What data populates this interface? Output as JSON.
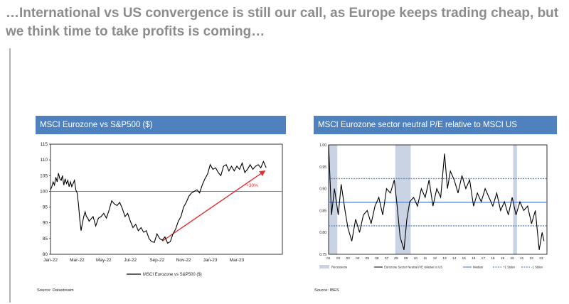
{
  "headline": "…International vs US convergence is still our call, as Europe keeps trading cheap, but we think time to take profits is coming…",
  "colors": {
    "panel_header": "#4e81bd",
    "series": "#000000",
    "trend_arrow": "#e03030",
    "recession_band": "#c9d3e3",
    "median_line": "#5b86c4",
    "headline": "#8c8c8c"
  },
  "chart_data": [
    {
      "type": "line",
      "panel_title": "MSCI Eurozone vs S&P500 ($)",
      "source": "Source: Datastream",
      "x_tick_labels": [
        "Jan-22",
        "Mar-22",
        "May-22",
        "Jul-22",
        "Sep-22",
        "Nov-22",
        "Jan-23",
        "Mar-23"
      ],
      "y_tick_labels": [
        "80",
        "85",
        "90",
        "95",
        "100",
        "105",
        "110",
        "115"
      ],
      "ylim": [
        80,
        115
      ],
      "reference_line": 100,
      "annotation": "+30%",
      "series": [
        {
          "name": "MSCI Eurozone vs S&P500 ($)",
          "x": [
            0.0,
            0.1,
            0.2,
            0.3,
            0.4,
            0.5,
            0.6,
            0.7,
            0.8,
            0.9,
            1.0,
            1.1,
            1.2,
            1.3,
            1.4,
            1.5,
            1.6,
            1.7,
            1.8,
            1.9,
            2.0,
            2.1,
            2.2,
            2.3,
            2.4,
            2.5,
            2.6,
            2.7,
            2.8,
            2.9,
            3.0,
            3.2,
            3.4,
            3.6,
            3.8,
            4.0,
            4.2,
            4.4,
            4.6,
            4.8,
            5.0,
            5.2,
            5.4,
            5.6,
            5.8,
            6.0,
            6.2,
            6.4,
            6.6,
            6.8,
            7.0,
            7.2,
            7.4,
            7.6,
            7.8,
            8.0,
            8.2,
            8.4,
            8.6,
            8.8,
            9.0,
            9.2,
            9.4,
            9.6,
            9.8,
            10.0,
            10.2,
            10.4,
            10.6,
            10.8,
            11.0,
            11.2,
            11.4,
            11.6,
            11.8,
            12.0,
            12.2,
            12.4,
            12.6,
            12.8,
            13.0,
            13.2,
            13.4,
            13.6,
            13.8,
            14.0,
            14.2,
            14.4,
            14.6,
            14.8,
            15.0,
            15.2,
            15.4,
            15.6,
            15.8,
            16.0,
            16.2
          ],
          "values": [
            100.5,
            101.5,
            103,
            102,
            104.5,
            103,
            105.8,
            104,
            103.5,
            105,
            102,
            104,
            102.5,
            103.5,
            101.5,
            103,
            101.5,
            102.5,
            103.5,
            100.5,
            99.5,
            96,
            91,
            87.5,
            90,
            92,
            93.5,
            92,
            91.5,
            90.5,
            91,
            92,
            89,
            91.5,
            92,
            93,
            91.5,
            94,
            97,
            96,
            95.5,
            96.5,
            94.5,
            92,
            93,
            90.5,
            88.5,
            89.5,
            87.5,
            88.5,
            87,
            87.5,
            85,
            84,
            83.8,
            86.5,
            85,
            84.5,
            85.5,
            83.5,
            84,
            86.5,
            88,
            90.5,
            92,
            95,
            96.5,
            98.5,
            99.5,
            100,
            100.5,
            99.5,
            102,
            104,
            105.5,
            108.5,
            107,
            107.5,
            106,
            105,
            108,
            108.5,
            106.5,
            108,
            106.5,
            108,
            107,
            109,
            106,
            107,
            108.5,
            107,
            108,
            108.5,
            107.5,
            109.5,
            107.5
          ]
        }
      ]
    },
    {
      "type": "line",
      "panel_title": "MSCI Eurozone sector neutral P/E relative to MSCI US",
      "source": "Source: IBES",
      "x_tick_labels": [
        "01",
        "02",
        "03",
        "04",
        "05",
        "06",
        "07",
        "08",
        "09",
        "10",
        "11",
        "12",
        "13",
        "14",
        "15",
        "16",
        "17",
        "18",
        "19",
        "20",
        "21",
        "22",
        "23"
      ],
      "y_tick_labels": [
        "0.75",
        "0.80",
        "0.85",
        "0.90",
        "0.95",
        "1.00"
      ],
      "ylim": [
        0.75,
        1.0
      ],
      "recession_periods": [
        [
          2001.0,
          2001.9
        ],
        [
          2007.9,
          2009.5
        ],
        [
          2020.1,
          2020.5
        ]
      ],
      "reference_lines": [
        {
          "name": "Median",
          "value": 0.869
        },
        {
          "name": "+1 Stdev",
          "value": 0.923
        },
        {
          "name": "-1 Stdev",
          "value": 0.815
        }
      ],
      "legend": [
        "Recessions",
        "Eurozone Sector Neutral P/E relative to US",
        "Median",
        "+1 Stdev",
        "-1 Stdev"
      ],
      "series": [
        {
          "name": "Eurozone Sector Neutral P/E relative to US",
          "x": [
            2001.0,
            2001.3,
            2001.6,
            2002.0,
            2002.3,
            2002.7,
            2003.0,
            2003.4,
            2003.8,
            2004.2,
            2004.6,
            2005.0,
            2005.4,
            2005.8,
            2006.2,
            2006.6,
            2007.0,
            2007.4,
            2007.8,
            2008.1,
            2008.4,
            2008.8,
            2009.1,
            2009.4,
            2009.8,
            2010.2,
            2010.6,
            2011.0,
            2011.4,
            2011.8,
            2012.2,
            2012.6,
            2013.0,
            2013.3,
            2013.6,
            2014.0,
            2014.4,
            2014.8,
            2015.2,
            2015.6,
            2016.0,
            2016.4,
            2016.8,
            2017.2,
            2017.6,
            2018.0,
            2018.4,
            2018.8,
            2019.2,
            2019.6,
            2020.0,
            2020.4,
            2020.8,
            2021.2,
            2021.6,
            2022.0,
            2022.4,
            2022.8,
            2023.1,
            2023.3
          ],
          "values": [
            1.0,
            0.84,
            0.9,
            0.84,
            0.91,
            0.85,
            0.81,
            0.78,
            0.83,
            0.8,
            0.84,
            0.85,
            0.82,
            0.86,
            0.88,
            0.84,
            0.9,
            0.89,
            0.92,
            0.86,
            0.79,
            0.76,
            0.83,
            0.87,
            0.88,
            0.86,
            0.9,
            0.88,
            0.92,
            0.86,
            0.9,
            0.88,
            0.98,
            0.9,
            0.94,
            0.92,
            0.89,
            0.93,
            0.9,
            0.92,
            0.86,
            0.89,
            0.87,
            0.9,
            0.88,
            0.86,
            0.89,
            0.85,
            0.87,
            0.84,
            0.88,
            0.84,
            0.87,
            0.85,
            0.86,
            0.82,
            0.85,
            0.76,
            0.8,
            0.78
          ]
        }
      ]
    }
  ]
}
